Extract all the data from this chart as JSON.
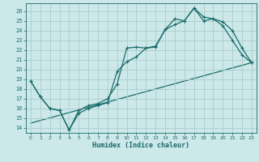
{
  "xlabel": "Humidex (Indice chaleur)",
  "bg_color": "#cce8e8",
  "grid_color": "#aacccc",
  "line_color": "#1a6b6b",
  "xlim": [
    -0.5,
    23.5
  ],
  "ylim": [
    13.5,
    26.8
  ],
  "xticks": [
    0,
    1,
    2,
    3,
    4,
    5,
    6,
    7,
    8,
    9,
    10,
    11,
    12,
    13,
    14,
    15,
    16,
    17,
    18,
    19,
    20,
    21,
    22,
    23
  ],
  "yticks": [
    14,
    15,
    16,
    17,
    18,
    19,
    20,
    21,
    22,
    23,
    24,
    25,
    26
  ],
  "line1_x": [
    0,
    1,
    2,
    3,
    4,
    5,
    6,
    7,
    8,
    9,
    10,
    11,
    12,
    13,
    14,
    15,
    16,
    17,
    18,
    19,
    20,
    21,
    22,
    23
  ],
  "line1_y": [
    18.8,
    17.2,
    16.0,
    15.8,
    13.8,
    15.8,
    16.3,
    16.5,
    17.0,
    18.5,
    22.2,
    22.3,
    22.2,
    22.4,
    24.1,
    25.2,
    25.0,
    26.3,
    25.4,
    25.2,
    24.9,
    24.0,
    22.2,
    20.7
  ],
  "line2_x": [
    0,
    1,
    2,
    3,
    4,
    5,
    6,
    7,
    8,
    9,
    10,
    11,
    12,
    13,
    14,
    15,
    16,
    17,
    18,
    19,
    20,
    21,
    22,
    23
  ],
  "line2_y": [
    18.8,
    17.2,
    16.0,
    15.8,
    13.8,
    15.5,
    16.0,
    16.3,
    16.6,
    19.8,
    20.8,
    21.3,
    22.2,
    22.3,
    24.1,
    24.6,
    25.0,
    26.3,
    25.0,
    25.2,
    24.5,
    23.0,
    21.5,
    20.7
  ],
  "line3_x": [
    0,
    23
  ],
  "line3_y": [
    14.5,
    20.7
  ],
  "linewidth": 0.9,
  "markersize": 3.5
}
